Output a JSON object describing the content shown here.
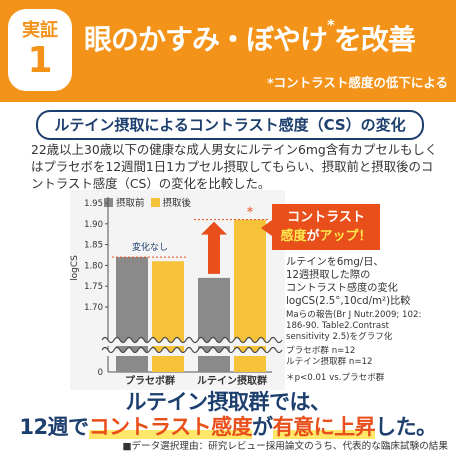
{
  "banner": {
    "badge_top": "実証",
    "badge_num": "1",
    "headline": "眼のかすみ・ぼやけ",
    "headline_star": "*",
    "headline_tail": "を改善",
    "subhead": "*コントラスト感度の低下による"
  },
  "section_title": "ルテイン摂取によるコントラスト感度（CS）の変化",
  "description": "22歳以上30歳以下の健康な成人男女にルテイン6mg含有カプセルもしくはプラセボを12週間1日1カプセル摂取してもらい、摂取前と摂取後のコントラスト感度（CS）の変化を比較した。",
  "callout": {
    "line1": "コントラスト",
    "line2a": "感度",
    "line2b": "が",
    "line2c": "アップ！"
  },
  "notes": {
    "n1": "ルテインを6mg/日、",
    "n2": "12週摂取した際の",
    "n3": "コントラスト感度の変化",
    "n4": "logCS(2.5°,10cd/m²)比較",
    "ref1": "Maらの報告(Br J Nutr.2009; 102:",
    "ref2": "186-90. Table2.Contrast",
    "ref3": "sensitivity 2.5)をグラフ化",
    "grp1": "プラセボ群 n=12",
    "grp2": "ルテイン摂取群 n=12",
    "sig": "＊p<0.01 vs.プラセボ群"
  },
  "conclusion": {
    "line1": "ルテイン摂取群では、",
    "line2a": "12週で",
    "line2b": "コントラスト感度",
    "line2c": "が",
    "line2d": "有意に上昇",
    "line2e": "した。"
  },
  "footnote": "■データ選択理由：研究レビュー採用論文のうち、代表的な臨床試験の結果",
  "colors": {
    "orange": "#f39319",
    "red": "#e84f1a",
    "navy": "#1d3f6e",
    "before": "#8a8a8a",
    "after": "#f6c23a"
  },
  "chart_data": {
    "type": "bar",
    "ylabel": "logCS",
    "ylim": [
      1.7,
      1.95
    ],
    "ytick_labels": [
      "1.95",
      "1.90",
      "1.85",
      "1.80",
      "1.75",
      "1.70",
      "0"
    ],
    "categories": [
      "プラセボ群",
      "ルテイン摂取群"
    ],
    "series": [
      {
        "name": "摂取前",
        "values": [
          1.82,
          1.77
        ]
      },
      {
        "name": "摂取後",
        "values": [
          1.81,
          1.91
        ]
      }
    ],
    "annotations": {
      "no_change": "変化なし",
      "significance": "*"
    },
    "axis_break": true
  }
}
